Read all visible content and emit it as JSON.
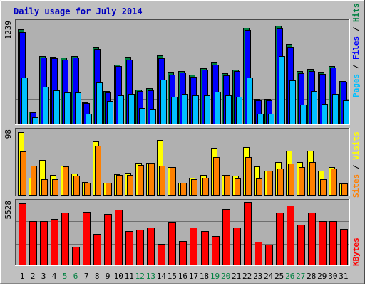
{
  "colors": {
    "background": "#c0c0c0",
    "panel": "#b0b0b0",
    "frame_dark": "#4a4a4a",
    "frame_light": "#ffffff",
    "title": "#0000c0",
    "hits": "#008040",
    "files": "#0000ff",
    "pages": "#00c0ff",
    "visits": "#ffff00",
    "sites": "#ff8000",
    "kbytes": "#ff0000",
    "day_label": "#000000",
    "weekend_label": "#008040"
  },
  "chart_data": {
    "type": "bar",
    "title": "Daily usage for July 2014",
    "categories": [
      "1",
      "2",
      "3",
      "4",
      "5",
      "6",
      "7",
      "8",
      "9",
      "10",
      "11",
      "12",
      "13",
      "14",
      "15",
      "16",
      "17",
      "18",
      "19",
      "20",
      "21",
      "22",
      "23",
      "24",
      "25",
      "26",
      "27",
      "28",
      "29",
      "30",
      "31"
    ],
    "weekend_days": [
      "5",
      "6",
      "12",
      "13",
      "19",
      "20",
      "26",
      "27"
    ],
    "panels": [
      {
        "max_label": "1239",
        "ylim": [
          0,
          1239
        ],
        "legend": [
          "Pages",
          "Files",
          "Hits"
        ],
        "series": [
          {
            "name": "Hits",
            "values": [
              1150,
              150,
              825,
              812,
              808,
              825,
              260,
              940,
              400,
              720,
              812,
              415,
              435,
              830,
              630,
              645,
              595,
              675,
              750,
              613,
              655,
              1170,
              300,
              300,
              1200,
              970,
              640,
              670,
              630,
              705,
              520
            ]
          },
          {
            "name": "Files",
            "values": [
              1118,
              140,
              810,
              800,
              780,
              810,
              250,
              910,
              380,
              705,
              780,
              400,
              410,
              795,
              600,
              625,
              575,
              660,
              720,
              590,
              640,
              1140,
              290,
              290,
              1165,
              940,
              615,
              645,
              610,
              685,
              510
            ]
          },
          {
            "name": "Pages",
            "values": [
              560,
              80,
              450,
              410,
              380,
              380,
              120,
              500,
              280,
              350,
              360,
              190,
              180,
              535,
              330,
              360,
              350,
              350,
              390,
              350,
              330,
              560,
              120,
              120,
              820,
              530,
              230,
              400,
              240,
              360,
              290
            ]
          }
        ]
      },
      {
        "max_label": "98",
        "ylim": [
          0,
          98
        ],
        "legend": [
          "Sites",
          "Visits"
        ],
        "series": [
          {
            "name": "Visits",
            "values": [
              96,
              26,
              53,
              31,
              45,
              33,
              20,
              83,
              19,
              32,
              34,
              49,
              49,
              84,
              42,
              19,
              26,
              30,
              72,
              31,
              29,
              73,
              44,
              37,
              50,
              68,
              50,
              68,
              37,
              42,
              17
            ]
          },
          {
            "name": "Sites",
            "values": [
              66,
              45,
              24,
              24,
              44,
              29,
              18,
              75,
              18,
              31,
              31,
              46,
              49,
              45,
              43,
              18,
              24,
              26,
              58,
              31,
              25,
              58,
              25,
              37,
              40,
              48,
              42,
              50,
              24,
              40,
              17
            ]
          }
        ]
      },
      {
        "max_label": "5528",
        "ylim": [
          0,
          5528
        ],
        "legend": [
          "KBytes"
        ],
        "series": [
          {
            "name": "KBytes",
            "values": [
              5420,
              3850,
              3850,
              4020,
              4560,
              1600,
              4640,
              2690,
              4480,
              4860,
              2950,
              3060,
              3240,
              1850,
              3780,
              2100,
              3250,
              2950,
              2490,
              4880,
              3250,
              5528,
              2000,
              1780,
              4560,
              5200,
              3510,
              4560,
              3850,
              3850,
              3160
            ]
          }
        ]
      }
    ]
  }
}
